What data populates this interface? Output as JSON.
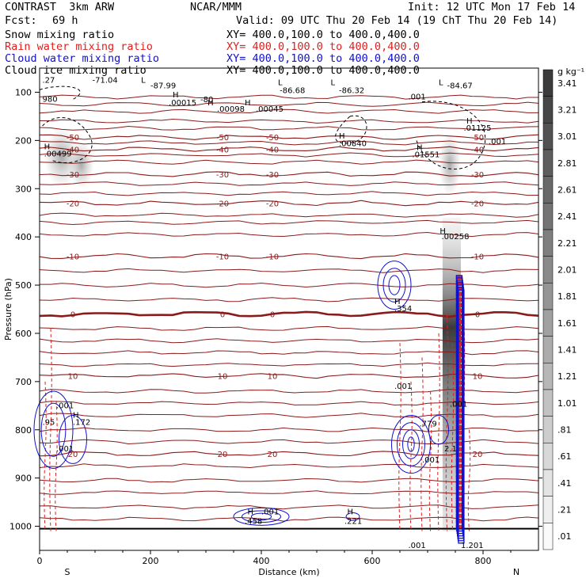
{
  "header": {
    "model": "CONTRAST  3km ARW",
    "org": "NCAR/MMM",
    "init": "Init: 12 UTC Mon 17 Feb 14",
    "fcst_label": "Fcst:",
    "fcst_value": "69 h",
    "valid": "Valid: 09 UTC Thu 20 Feb 14 (19 ChT Thu 20 Feb 14)",
    "fields": [
      {
        "name": "Snow mixing ratio",
        "xy": "XY= 400.0,100.0 to 400.0,400.0",
        "color": "#000000"
      },
      {
        "name": "Rain water mixing ratio",
        "xy": "XY= 400.0,100.0 to 400.0,400.0",
        "color": "#e02020"
      },
      {
        "name": "Cloud water mixing ratio",
        "xy": "XY= 400.0,100.0 to 400.0,400.0",
        "color": "#1010d0"
      },
      {
        "name": "Cloud ice mixing ratio",
        "xy": "XY= 400.0,100.0 to 400.0,400.0",
        "color": "#000000"
      }
    ]
  },
  "chart_data": {
    "type": "contour",
    "xlabel": "Distance (km)",
    "ylabel": "Pressure (hPa)",
    "xlim": [
      0,
      900
    ],
    "ylim": [
      1050,
      50
    ],
    "x_ticks": [
      0,
      200,
      400,
      600,
      800
    ],
    "y_ticks": [
      100,
      200,
      300,
      400,
      500,
      600,
      700,
      800,
      900,
      1000
    ],
    "x_end_labels": {
      "left": "S",
      "right": "N"
    },
    "temperature_contours": [
      {
        "value": -50,
        "pressure": 193,
        "label": "-50"
      },
      {
        "value": -40,
        "pressure": 218,
        "label": "-40"
      },
      {
        "value": -30,
        "pressure": 270,
        "label": "-30"
      },
      {
        "value": -20,
        "pressure": 330,
        "label": "-20"
      },
      {
        "value": -10,
        "pressure": 440,
        "label": "-10"
      },
      {
        "value": 0,
        "pressure": 560,
        "label": "0"
      },
      {
        "value": 10,
        "pressure": 688,
        "label": "10"
      },
      {
        "value": 20,
        "pressure": 850,
        "label": "20"
      }
    ],
    "annotations": [
      {
        "text": ".27",
        "x": 5,
        "p": 80
      },
      {
        "text": "-71.04",
        "x": 95,
        "p": 80
      },
      {
        "text": "L",
        "x": 183,
        "p": 80
      },
      {
        "text": "-87.99",
        "x": 200,
        "p": 92
      },
      {
        "text": "H",
        "x": 240,
        "p": 111
      },
      {
        "text": ".00015",
        "x": 233,
        "p": 127
      },
      {
        "text": "-80",
        "x": 290,
        "p": 121
      },
      {
        "text": "H",
        "x": 303,
        "p": 127
      },
      {
        "text": ".00098",
        "x": 320,
        "p": 140
      },
      {
        "text": "H",
        "x": 370,
        "p": 127
      },
      {
        "text": ".00045",
        "x": 390,
        "p": 140
      },
      {
        "text": "L",
        "x": 430,
        "p": 85
      },
      {
        "text": "-86.68",
        "x": 433,
        "p": 102
      },
      {
        "text": "L",
        "x": 525,
        "p": 85
      },
      {
        "text": "-86.32",
        "x": 540,
        "p": 102
      },
      {
        "text": "L",
        "x": 720,
        "p": 85
      },
      {
        "text": "-84.67",
        "x": 735,
        "p": 92
      },
      {
        "text": ".001",
        "x": 665,
        "p": 115
      },
      {
        "text": "980",
        "x": 5,
        "p": 120
      },
      {
        "text": "H",
        "x": 770,
        "p": 165
      },
      {
        "text": ".01125",
        "x": 765,
        "p": 180
      },
      {
        "text": ".001",
        "x": 810,
        "p": 208
      },
      {
        "text": "H",
        "x": 8,
        "p": 218
      },
      {
        "text": ".00499",
        "x": 8,
        "p": 233
      },
      {
        "text": "H",
        "x": 540,
        "p": 196
      },
      {
        "text": ".00840",
        "x": 540,
        "p": 212
      },
      {
        "text": "H",
        "x": 680,
        "p": 220
      },
      {
        "text": ".01551",
        "x": 672,
        "p": 235
      },
      {
        "text": "H",
        "x": 722,
        "p": 393
      },
      {
        "text": ".00258",
        "x": 725,
        "p": 405
      },
      {
        "text": "H",
        "x": 640,
        "p": 539
      },
      {
        "text": ".354",
        "x": 640,
        "p": 554
      },
      {
        "text": ".001",
        "x": 640,
        "p": 715
      },
      {
        "text": ".001",
        "x": 30,
        "p": 755
      },
      {
        "text": "H",
        "x": 60,
        "p": 775
      },
      {
        "text": ".172",
        "x": 60,
        "p": 790
      },
      {
        "text": ".95",
        "x": 5,
        "p": 790
      },
      {
        "text": ".001",
        "x": 30,
        "p": 845
      },
      {
        "text": ".779",
        "x": 685,
        "p": 793
      },
      {
        "text": "2.1",
        "x": 730,
        "p": 845
      },
      {
        "text": ".001",
        "x": 690,
        "p": 868
      },
      {
        "text": ".001",
        "x": 740,
        "p": 752
      },
      {
        "text": "H",
        "x": 375,
        "p": 975
      },
      {
        "text": ".458",
        "x": 370,
        "p": 995
      },
      {
        "text": ".001",
        "x": 400,
        "p": 975
      },
      {
        "text": "H",
        "x": 555,
        "p": 975
      },
      {
        "text": ".221",
        "x": 550,
        "p": 995
      },
      {
        "text": ".001",
        "x": 665,
        "p": 1045
      },
      {
        "text": "1.201",
        "x": 760,
        "p": 1045
      }
    ],
    "colorbar": {
      "unit": "g kg⁻¹",
      "labels": [
        "3.41",
        "3.21",
        "3.01",
        "2.81",
        "2.61",
        "2.41",
        "2.21",
        "2.01",
        "1.81",
        "1.61",
        "1.41",
        "1.21",
        "1.01",
        ".81",
        ".61",
        ".41",
        ".21",
        ".01"
      ]
    }
  }
}
